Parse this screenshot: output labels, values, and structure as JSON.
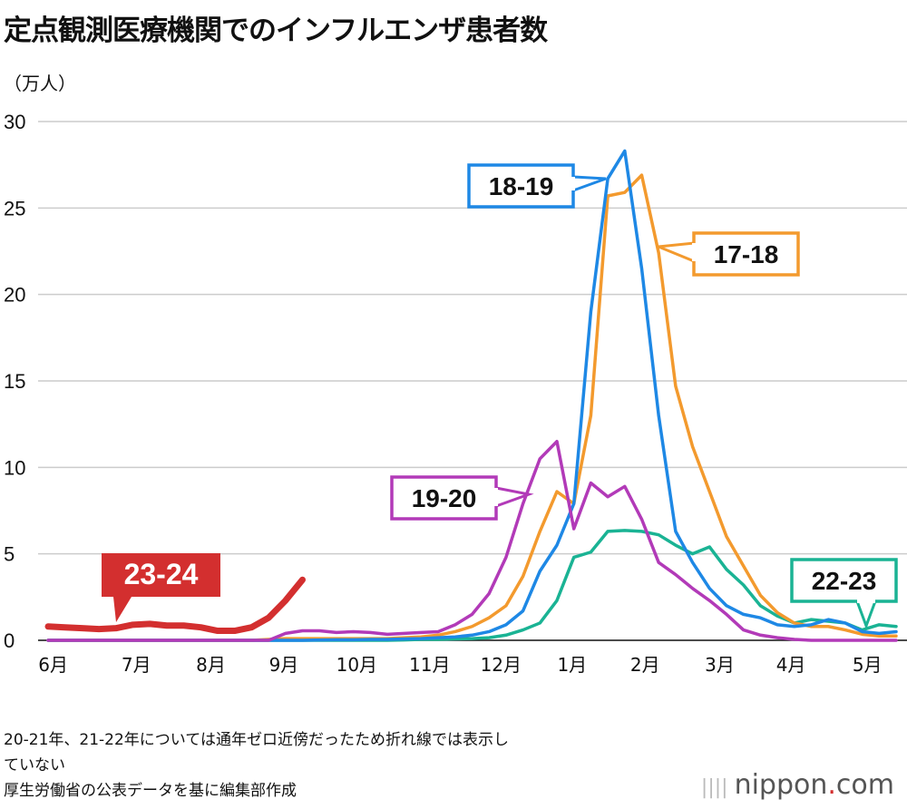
{
  "title": "定点観測医療機関でのインフルエンザ患者数",
  "notes": [
    "20-21年、21-22年については通年ゼロ近傍だったため折れ線では表示し",
    "ていない",
    "厚生労働省の公表データを基に編集部作成"
  ],
  "logo": {
    "text": "nippon",
    "dot": ".",
    "suffix": "com"
  },
  "chart_data": {
    "type": "line",
    "title": "定点観測医療機関でのインフルエンザ患者数",
    "ylabel": "（万人）",
    "ylim": [
      0,
      30
    ],
    "yticks": [
      0,
      5,
      10,
      15,
      20,
      25,
      30
    ],
    "grid": true,
    "x_unit": "week",
    "month_ticks": [
      {
        "label": "6月",
        "week": 0.3
      },
      {
        "label": "7月",
        "week": 5.2
      },
      {
        "label": "8月",
        "week": 9.6
      },
      {
        "label": "9月",
        "week": 13.9
      },
      {
        "label": "10月",
        "week": 18.2
      },
      {
        "label": "11月",
        "week": 22.5
      },
      {
        "label": "12月",
        "week": 26.7
      },
      {
        "label": "1月",
        "week": 30.9
      },
      {
        "label": "2月",
        "week": 35.2
      },
      {
        "label": "3月",
        "week": 39.6
      },
      {
        "label": "4月",
        "week": 43.8
      },
      {
        "label": "5月",
        "week": 48.3
      }
    ],
    "series": [
      {
        "name": "22-23",
        "color": "#1ab394",
        "values": [
          0,
          0,
          0,
          0,
          0,
          0,
          0,
          0,
          0,
          0,
          0,
          0,
          0,
          0,
          0,
          0,
          0,
          0,
          0,
          0,
          0,
          0.02,
          0.05,
          0.05,
          0.08,
          0.1,
          0.15,
          0.3,
          0.6,
          1.0,
          2.3,
          4.8,
          5.1,
          6.3,
          6.35,
          6.3,
          6.1,
          5.5,
          5.0,
          5.4,
          4.1,
          3.2,
          2.0,
          1.4,
          1.0,
          1.2,
          1.1,
          1.0,
          0.6,
          0.9,
          0.8
        ]
      },
      {
        "name": "17-18",
        "color": "#f39a2e",
        "values": [
          0,
          0,
          0,
          0,
          0,
          0,
          0,
          0,
          0,
          0,
          0,
          0,
          0,
          0.05,
          0.1,
          0.1,
          0.1,
          0.1,
          0.1,
          0.1,
          0.1,
          0.15,
          0.2,
          0.3,
          0.5,
          0.8,
          1.3,
          2.0,
          3.7,
          6.3,
          8.6,
          7.9,
          13.0,
          25.7,
          25.9,
          26.9,
          22.4,
          14.7,
          11.2,
          8.6,
          6.0,
          4.3,
          2.6,
          1.6,
          1.0,
          0.8,
          0.8,
          0.6,
          0.35,
          0.25,
          0.25
        ]
      },
      {
        "name": "18-19",
        "color": "#1e88e5",
        "values": [
          0,
          0,
          0,
          0,
          0,
          0,
          0,
          0,
          0,
          0,
          0,
          0,
          0,
          0,
          0,
          0,
          0.02,
          0.03,
          0.03,
          0.05,
          0.05,
          0.08,
          0.1,
          0.15,
          0.2,
          0.3,
          0.5,
          0.9,
          1.7,
          4.0,
          5.5,
          7.9,
          19.0,
          26.7,
          28.3,
          21.5,
          13.0,
          6.3,
          4.5,
          3.0,
          2.0,
          1.5,
          1.3,
          0.9,
          0.8,
          0.9,
          1.2,
          1.0,
          0.5,
          0.4,
          0.5
        ]
      },
      {
        "name": "19-20",
        "color": "#b23ab8",
        "values": [
          0,
          0,
          0,
          0,
          0,
          0,
          0,
          0,
          0,
          0,
          0,
          0,
          0,
          0,
          0.4,
          0.55,
          0.55,
          0.45,
          0.5,
          0.45,
          0.35,
          0.4,
          0.45,
          0.5,
          0.9,
          1.5,
          2.7,
          4.8,
          7.9,
          10.5,
          11.5,
          6.45,
          9.1,
          8.3,
          8.9,
          7.0,
          4.5,
          3.8,
          3.0,
          2.3,
          1.5,
          0.6,
          0.3,
          0.15,
          0.05,
          0,
          0,
          0,
          0,
          0,
          0
        ]
      },
      {
        "name": "23-24",
        "color": "#d32f2f",
        "values": [
          0.8,
          0.75,
          0.7,
          0.65,
          0.7,
          0.9,
          0.95,
          0.85,
          0.85,
          0.75,
          0.55,
          0.55,
          0.75,
          1.3,
          2.3,
          3.5
        ]
      }
    ]
  }
}
